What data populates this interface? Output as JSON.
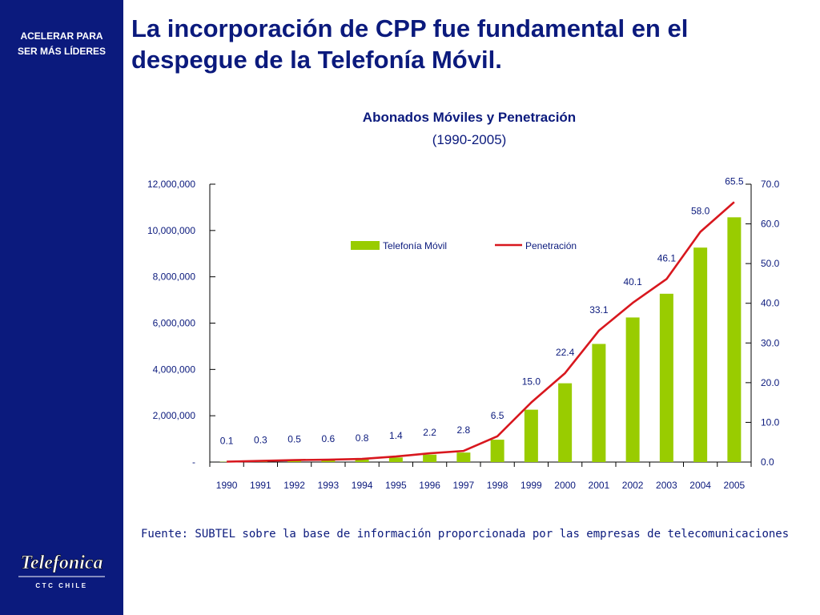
{
  "sidebar": {
    "tagline_line1": "ACELERAR PARA",
    "tagline_line2": "SER MÁS LÍDERES",
    "logo_text": "Telefonica",
    "logo_subtext": "CTC CHILE"
  },
  "slide": {
    "title_line1": "La incorporación de CPP fue fundamental en el",
    "title_line2": "despegue de la Telefonía Móvil.",
    "source": "Fuente: SUBTEL sobre la base de información proporcionada por las empresas de telecomunicaciones"
  },
  "colors": {
    "brand_navy": "#0b1a7d",
    "bar_green": "#99cc00",
    "line_red": "#d8171e"
  },
  "chart_data": {
    "type": "bar",
    "title": "Abonados Móviles y Penetración",
    "subtitle": "(1990-2005)",
    "categories": [
      "1990",
      "1991",
      "1992",
      "1993",
      "1994",
      "1995",
      "1996",
      "1997",
      "1998",
      "1999",
      "2000",
      "2001",
      "2002",
      "2003",
      "2004",
      "2005"
    ],
    "series": [
      {
        "name": "Telefonía Móvil",
        "type": "bar",
        "axis": "left",
        "values": [
          13000,
          36000,
          64000,
          85000,
          116000,
          197000,
          320000,
          410000,
          965000,
          2261000,
          3402000,
          5101000,
          6244000,
          7268000,
          9261000,
          10570000
        ]
      },
      {
        "name": "Penetración",
        "type": "line",
        "axis": "right",
        "values": [
          0.1,
          0.3,
          0.5,
          0.6,
          0.8,
          1.4,
          2.2,
          2.8,
          6.5,
          15.0,
          22.4,
          33.1,
          40.1,
          46.1,
          58.0,
          65.5
        ],
        "labels": [
          "0.1",
          "0.3",
          "0.5",
          "0.6",
          "0.8",
          "1.4",
          "2.2",
          "2.8",
          "6.5",
          "15.0",
          "22.4",
          "33.1",
          "40.1",
          "46.1",
          "58.0",
          "65.5"
        ]
      }
    ],
    "y_left": {
      "ylim": [
        0,
        12000000
      ],
      "ticks": [
        0,
        2000000,
        4000000,
        6000000,
        8000000,
        10000000,
        12000000
      ],
      "tick_labels": [
        "-",
        "2,000,000",
        "4,000,000",
        "6,000,000",
        "8,000,000",
        "10,000,000",
        "12,000,000"
      ]
    },
    "y_right": {
      "ylim": [
        0,
        70
      ],
      "ticks": [
        0,
        10,
        20,
        30,
        40,
        50,
        60,
        70
      ],
      "tick_labels": [
        "0.0",
        "10.0",
        "20.0",
        "30.0",
        "40.0",
        "50.0",
        "60.0",
        "70.0"
      ]
    },
    "legend_position": "top-center",
    "grid": false
  }
}
